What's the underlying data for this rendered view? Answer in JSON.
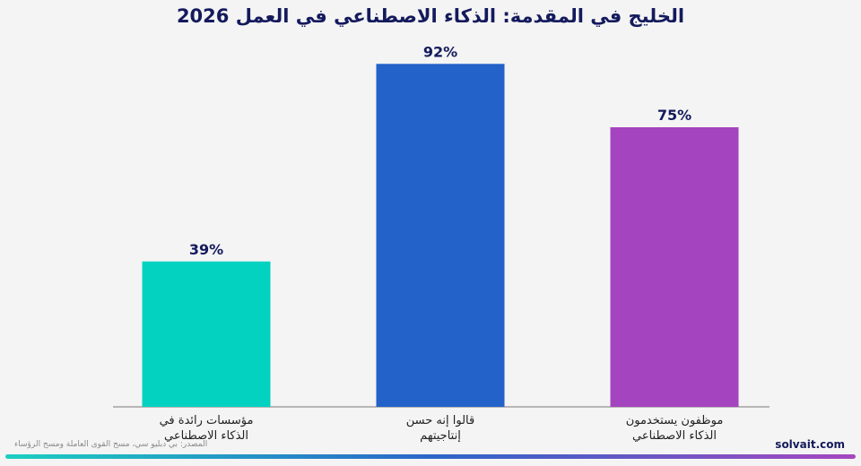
{
  "title": "الخليج في المقدمة: الذكاء الاصطناعي في العمل 2026",
  "source": "المصدر: بي دبليو سي، مسح القوى العاملة ومسح الرؤساء",
  "brand": "solvait.com",
  "colors": {
    "background": "#f4f4f4",
    "title": "#141a5c",
    "axis": "#7a7a7a",
    "gradient": [
      "#1ccfc0",
      "#2b66c9",
      "#a647c0"
    ]
  },
  "chart_data": {
    "type": "bar",
    "categories": [
      [
        "مؤسسات رائدة في",
        "الذكاء الاصطناعي"
      ],
      [
        "قالوا إنه حسن",
        "إنتاجيتهم"
      ],
      [
        "موظفون يستخدمون",
        "الذكاء الاصطناعي"
      ]
    ],
    "values": [
      39,
      92,
      75
    ],
    "value_labels": [
      "39%",
      "92%",
      "75%"
    ],
    "bar_colors": [
      "#03d2c0",
      "#2262c9",
      "#a444bf"
    ],
    "ylim": [
      0,
      100
    ],
    "grid": false,
    "legend": "none"
  }
}
